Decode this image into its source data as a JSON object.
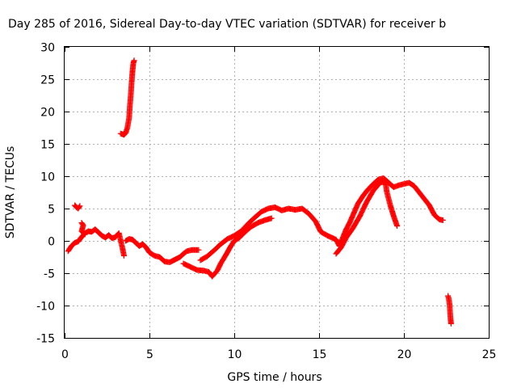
{
  "chart_data": {
    "type": "scatter",
    "title": "Day 285 of 2016, Sidereal Day-to-day VTEC variation (SDTVAR) for receiver b",
    "xlabel": "GPS time / hours",
    "ylabel": "SDTVAR / TECUs",
    "xlim": [
      0,
      25
    ],
    "ylim": [
      -15,
      30
    ],
    "x_ticks": [
      "0",
      "5",
      "10",
      "15",
      "20",
      "25"
    ],
    "y_ticks": [
      "-15",
      "-10",
      "-5",
      "0",
      "5",
      "10",
      "15",
      "20",
      "25",
      "30"
    ],
    "grid": true,
    "marker": "+",
    "color": "#ff0000",
    "series": [
      {
        "segments": [
          [
            [
              0.2,
              -1.6
            ],
            [
              0.4,
              -0.8
            ],
            [
              0.6,
              -0.3
            ],
            [
              0.8,
              -0.1
            ],
            [
              1.0,
              0.6
            ],
            [
              1.2,
              1.2
            ],
            [
              1.4,
              1.5
            ],
            [
              1.6,
              1.4
            ],
            [
              1.8,
              1.8
            ],
            [
              2.0,
              1.3
            ],
            [
              2.2,
              0.8
            ],
            [
              2.4,
              0.5
            ],
            [
              2.6,
              0.9
            ],
            [
              2.8,
              0.4
            ],
            [
              3.0,
              0.6
            ],
            [
              3.2,
              1.2
            ],
            [
              3.4,
              -1.0
            ],
            [
              3.5,
              -2.3
            ]
          ],
          [
            [
              0.6,
              5.5
            ],
            [
              0.7,
              5.2
            ],
            [
              0.8,
              5.0
            ],
            [
              0.9,
              5.4
            ]
          ],
          [
            [
              1.0,
              2.8
            ],
            [
              1.1,
              2.4
            ],
            [
              1.0,
              1.5
            ],
            [
              1.2,
              1.0
            ]
          ],
          [
            [
              3.6,
              0.0
            ],
            [
              3.8,
              0.3
            ],
            [
              4.0,
              0.2
            ],
            [
              4.2,
              -0.3
            ],
            [
              4.4,
              -0.8
            ],
            [
              4.6,
              -0.5
            ],
            [
              4.8,
              -1.0
            ],
            [
              5.0,
              -1.8
            ],
            [
              5.3,
              -2.3
            ],
            [
              5.6,
              -2.5
            ],
            [
              5.9,
              -3.2
            ],
            [
              6.2,
              -3.3
            ],
            [
              6.5,
              -2.9
            ],
            [
              6.8,
              -2.5
            ],
            [
              7.0,
              -2.0
            ],
            [
              7.2,
              -1.6
            ],
            [
              7.5,
              -1.4
            ],
            [
              7.9,
              -1.4
            ]
          ],
          [
            [
              3.3,
              16.6
            ],
            [
              3.5,
              16.4
            ],
            [
              3.6,
              16.7
            ],
            [
              3.7,
              17.5
            ],
            [
              3.8,
              19.0
            ],
            [
              3.85,
              21.0
            ],
            [
              3.9,
              22.5
            ],
            [
              3.95,
              24.5
            ],
            [
              4.0,
              26.2
            ],
            [
              4.05,
              27.5
            ],
            [
              4.1,
              27.9
            ]
          ],
          [
            [
              7.0,
              -3.5
            ],
            [
              7.4,
              -4.0
            ],
            [
              7.8,
              -4.5
            ],
            [
              8.2,
              -4.6
            ],
            [
              8.5,
              -4.8
            ],
            [
              8.7,
              -5.5
            ],
            [
              9.0,
              -4.6
            ],
            [
              9.2,
              -3.5
            ],
            [
              9.5,
              -2.2
            ],
            [
              9.8,
              -0.8
            ],
            [
              10.0,
              0.0
            ],
            [
              10.3,
              0.5
            ],
            [
              10.6,
              1.3
            ],
            [
              11.0,
              2.2
            ],
            [
              11.4,
              2.8
            ],
            [
              11.8,
              3.2
            ],
            [
              12.2,
              3.5
            ]
          ],
          [
            [
              8.0,
              -3.0
            ],
            [
              8.4,
              -2.4
            ],
            [
              8.8,
              -1.5
            ],
            [
              9.2,
              -0.5
            ],
            [
              9.6,
              0.3
            ],
            [
              10.0,
              0.8
            ],
            [
              10.4,
              1.5
            ],
            [
              10.8,
              2.6
            ],
            [
              11.2,
              3.6
            ],
            [
              11.6,
              4.5
            ],
            [
              12.0,
              5.0
            ],
            [
              12.4,
              5.2
            ],
            [
              12.8,
              4.7
            ],
            [
              13.2,
              5.0
            ],
            [
              13.6,
              4.8
            ],
            [
              14.0,
              5.0
            ],
            [
              14.4,
              4.2
            ],
            [
              14.8,
              3.0
            ],
            [
              15.1,
              1.4
            ],
            [
              15.5,
              0.8
            ],
            [
              16.0,
              0.2
            ],
            [
              16.2,
              -0.8
            ],
            [
              16.4,
              0.5
            ],
            [
              16.6,
              1.8
            ],
            [
              16.8,
              2.8
            ],
            [
              17.0,
              4.0
            ],
            [
              17.3,
              5.8
            ],
            [
              17.6,
              7.0
            ],
            [
              17.9,
              8.0
            ],
            [
              18.2,
              8.8
            ],
            [
              18.5,
              9.5
            ],
            [
              18.8,
              9.7
            ],
            [
              19.1,
              9.0
            ],
            [
              19.4,
              8.3
            ],
            [
              19.7,
              8.6
            ],
            [
              20.0,
              8.8
            ],
            [
              20.3,
              9.0
            ],
            [
              20.6,
              8.5
            ],
            [
              20.9,
              7.5
            ],
            [
              21.2,
              6.5
            ],
            [
              21.5,
              5.5
            ],
            [
              21.8,
              4.0
            ],
            [
              22.1,
              3.3
            ],
            [
              22.3,
              3.2
            ]
          ],
          [
            [
              16.0,
              -2.0
            ],
            [
              16.3,
              -1.0
            ],
            [
              16.6,
              0.5
            ],
            [
              17.0,
              2.0
            ],
            [
              17.4,
              3.8
            ],
            [
              17.8,
              6.0
            ],
            [
              18.2,
              7.8
            ],
            [
              18.6,
              9.0
            ],
            [
              18.9,
              9.2
            ],
            [
              19.0,
              7.5
            ],
            [
              19.2,
              5.5
            ],
            [
              19.4,
              3.8
            ],
            [
              19.6,
              2.3
            ]
          ],
          [
            [
              22.6,
              -8.5
            ],
            [
              22.65,
              -9.0
            ],
            [
              22.7,
              -10.0
            ],
            [
              22.72,
              -11.0
            ],
            [
              22.75,
              -12.0
            ],
            [
              22.78,
              -12.8
            ]
          ]
        ]
      }
    ]
  }
}
